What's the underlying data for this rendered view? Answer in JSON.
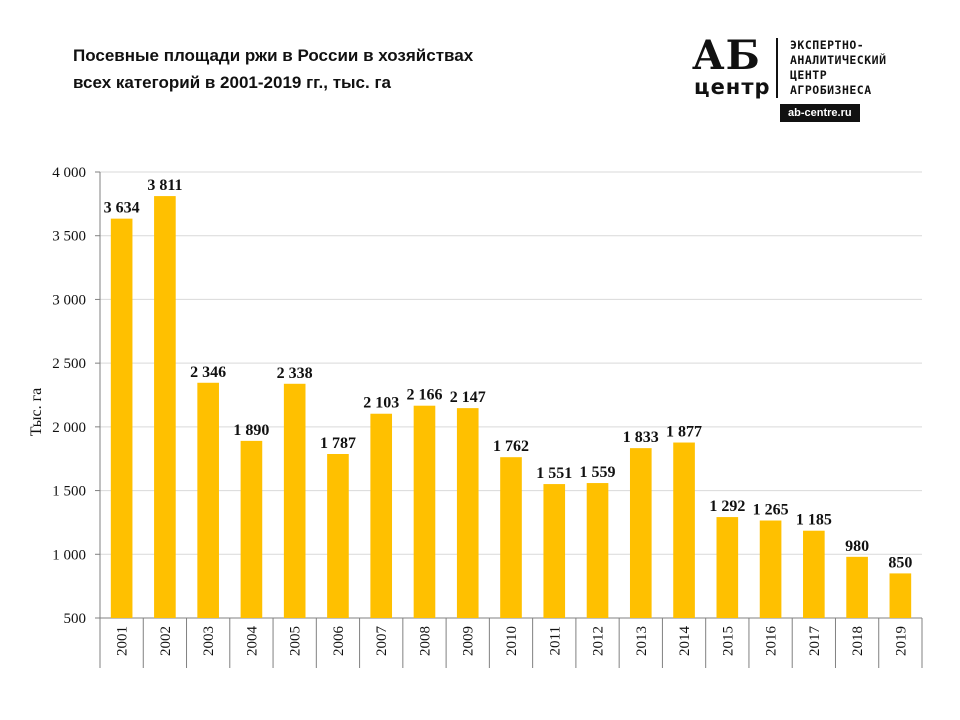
{
  "title": {
    "line1": "Посевные площади ржи в России в хозяйствах",
    "line2": "всех категорий в 2001-2019 гг., тыс. га"
  },
  "logo": {
    "ab": "АБ",
    "centr": "центр",
    "tagline": [
      "ЭКСПЕРТНО-",
      "АНАЛИТИЧЕСКИЙ",
      "ЦЕНТР",
      "АГРОБИЗНЕСА"
    ],
    "url": "ab-centre.ru"
  },
  "chart_data": {
    "type": "bar",
    "title": "Посевные площади ржи в России в хозяйствах всех категорий в 2001-2019 гг., тыс. га",
    "ylabel": "Тыс. га",
    "xlabel": "",
    "ylim": [
      500,
      4000
    ],
    "yticks": [
      500,
      1000,
      1500,
      2000,
      2500,
      3000,
      3500,
      4000
    ],
    "ytick_labels": [
      "500",
      "1 000",
      "1 500",
      "2 000",
      "2 500",
      "3 000",
      "3 500",
      "4 000"
    ],
    "grid": true,
    "bar_color": "#FFC000",
    "categories": [
      "2001",
      "2002",
      "2003",
      "2004",
      "2005",
      "2006",
      "2007",
      "2008",
      "2009",
      "2010",
      "2011",
      "2012",
      "2013",
      "2014",
      "2015",
      "2016",
      "2017",
      "2018",
      "2019"
    ],
    "values": [
      3634,
      3811,
      2346,
      1890,
      2338,
      1787,
      2103,
      2166,
      2147,
      1762,
      1551,
      1559,
      1833,
      1877,
      1292,
      1265,
      1185,
      980,
      850
    ],
    "value_labels": [
      "3 634",
      "3 811",
      "2 346",
      "1 890",
      "2 338",
      "1 787",
      "2 103",
      "2 166",
      "2 147",
      "1 762",
      "1 551",
      "1 559",
      "1 833",
      "1 877",
      "1 292",
      "1 265",
      "1 185",
      "980",
      "850"
    ]
  }
}
